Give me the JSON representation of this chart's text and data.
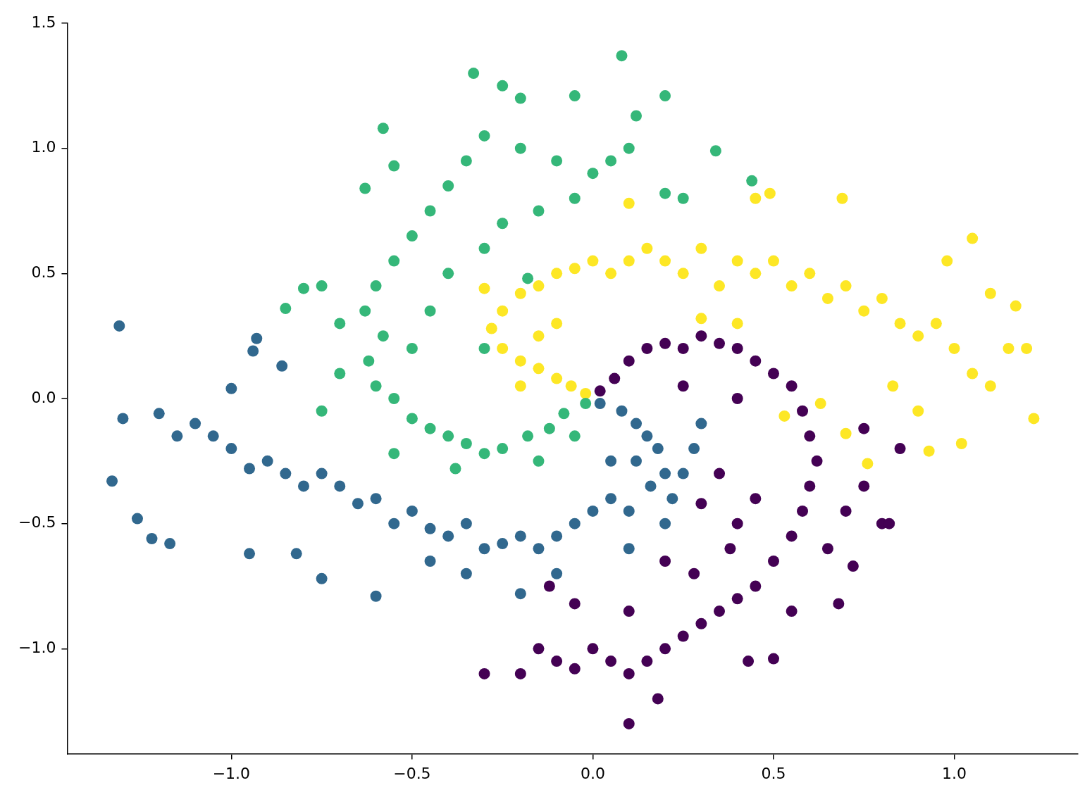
{
  "chart_data": {
    "type": "scatter",
    "marker": "circle",
    "legend": false,
    "xlim": [
      -1.454,
      1.342
    ],
    "ylim": [
      -1.42,
      1.5
    ],
    "xticks": [
      {
        "value": -1,
        "label": "−1.0"
      },
      {
        "value": -0.5,
        "label": "−0.5"
      },
      {
        "value": 0,
        "label": "0.0"
      },
      {
        "value": 0.5,
        "label": "0.5"
      },
      {
        "value": 1,
        "label": "1.0"
      }
    ],
    "yticks": [
      {
        "value": -1,
        "label": "−1.0"
      },
      {
        "value": -0.5,
        "label": "−0.5"
      },
      {
        "value": 0,
        "label": "0.0"
      },
      {
        "value": 0.5,
        "label": "0.5"
      },
      {
        "value": 1,
        "label": "1.0"
      },
      {
        "value": 1.5,
        "label": "1.5"
      }
    ],
    "series": [
      {
        "color": "#31688e",
        "x": [
          0.02,
          0.08,
          0.12,
          0.15,
          0.18,
          0.2,
          0.22,
          0.2,
          0.16,
          0.12,
          0.1,
          0.05,
          0.0,
          -0.05,
          -0.1,
          -0.15,
          -0.2,
          -0.25,
          -0.3,
          -0.35,
          -0.4,
          -0.45,
          -0.5,
          -0.55,
          -0.6,
          -0.65,
          -0.7,
          -0.75,
          -0.8,
          -0.85,
          -0.9,
          -0.95,
          -1.0,
          -1.05,
          -1.1,
          -1.15,
          -1.2,
          -1.3,
          -1.31,
          -1.33,
          -1.26,
          -1.17,
          -1.22,
          -0.93,
          -0.94,
          -0.86,
          0.28,
          0.25,
          0.3,
          -0.2,
          -0.6,
          -0.75,
          0.1,
          -0.45,
          -0.1,
          0.05,
          -0.35,
          -0.82,
          -1.0,
          -0.95
        ],
        "values": [
          -0.02,
          -0.05,
          -0.1,
          -0.15,
          -0.2,
          -0.3,
          -0.4,
          -0.5,
          -0.35,
          -0.25,
          -0.45,
          -0.4,
          -0.45,
          -0.5,
          -0.55,
          -0.6,
          -0.55,
          -0.58,
          -0.6,
          -0.5,
          -0.55,
          -0.52,
          -0.45,
          -0.5,
          -0.4,
          -0.42,
          -0.35,
          -0.3,
          -0.35,
          -0.3,
          -0.25,
          -0.28,
          -0.2,
          -0.15,
          -0.1,
          -0.15,
          -0.06,
          -0.08,
          0.29,
          -0.33,
          -0.48,
          -0.58,
          -0.56,
          0.24,
          0.19,
          0.13,
          -0.2,
          -0.3,
          -0.1,
          -0.78,
          -0.79,
          -0.72,
          -0.6,
          -0.65,
          -0.7,
          -0.25,
          -0.7,
          -0.62,
          0.04,
          -0.62
        ]
      },
      {
        "color": "#35b779",
        "x": [
          -0.02,
          -0.08,
          -0.12,
          -0.18,
          -0.25,
          -0.3,
          -0.35,
          -0.4,
          -0.45,
          -0.5,
          -0.55,
          -0.6,
          -0.62,
          -0.58,
          -0.63,
          -0.6,
          -0.55,
          -0.5,
          -0.45,
          -0.4,
          -0.35,
          -0.3,
          -0.2,
          -0.1,
          0.0,
          0.05,
          0.1,
          -0.05,
          -0.15,
          -0.25,
          -0.3,
          -0.4,
          -0.45,
          -0.5,
          -0.7,
          -0.75,
          -0.8,
          -0.85,
          -0.7,
          -0.75,
          -0.33,
          -0.25,
          0.08,
          0.2,
          0.34,
          0.44,
          0.25,
          0.2,
          -0.05,
          -0.15,
          -0.38,
          -0.55,
          -0.58,
          -0.55,
          -0.2,
          -0.05,
          0.12,
          -0.3,
          -0.18,
          -0.63
        ],
        "values": [
          -0.02,
          -0.06,
          -0.12,
          -0.15,
          -0.2,
          -0.22,
          -0.18,
          -0.15,
          -0.12,
          -0.08,
          0.0,
          0.05,
          0.15,
          0.25,
          0.35,
          0.45,
          0.55,
          0.65,
          0.75,
          0.85,
          0.95,
          1.05,
          1.0,
          0.95,
          0.9,
          0.95,
          1.0,
          0.8,
          0.75,
          0.7,
          0.6,
          0.5,
          0.35,
          0.2,
          0.3,
          0.45,
          0.44,
          0.36,
          0.1,
          -0.05,
          1.3,
          1.25,
          1.37,
          1.21,
          0.99,
          0.87,
          0.8,
          0.82,
          -0.15,
          -0.25,
          -0.28,
          -0.22,
          1.08,
          0.93,
          1.2,
          1.21,
          1.13,
          0.2,
          0.48,
          0.84
        ]
      },
      {
        "color": "#fde725",
        "x": [
          -0.02,
          -0.06,
          -0.1,
          -0.15,
          -0.2,
          -0.25,
          -0.28,
          -0.25,
          -0.2,
          -0.15,
          -0.1,
          -0.05,
          0.0,
          0.05,
          0.1,
          0.15,
          0.2,
          0.25,
          0.3,
          0.35,
          0.4,
          0.45,
          0.5,
          0.55,
          0.6,
          0.65,
          0.7,
          0.75,
          0.8,
          0.85,
          0.9,
          0.95,
          1.0,
          1.05,
          1.1,
          1.15,
          1.2,
          1.22,
          1.17,
          1.05,
          1.1,
          0.69,
          0.49,
          0.1,
          -0.15,
          -0.1,
          -0.2,
          0.53,
          0.63,
          0.7,
          0.76,
          0.93,
          0.83,
          0.9,
          1.02,
          0.3,
          0.4,
          0.45,
          -0.3,
          0.98
        ],
        "values": [
          0.02,
          0.05,
          0.08,
          0.12,
          0.15,
          0.2,
          0.28,
          0.35,
          0.42,
          0.45,
          0.5,
          0.52,
          0.55,
          0.5,
          0.55,
          0.6,
          0.55,
          0.5,
          0.6,
          0.45,
          0.55,
          0.5,
          0.55,
          0.45,
          0.5,
          0.4,
          0.45,
          0.35,
          0.4,
          0.3,
          0.25,
          0.3,
          0.2,
          0.1,
          0.05,
          0.2,
          0.2,
          -0.08,
          0.37,
          0.64,
          0.42,
          0.8,
          0.82,
          0.78,
          0.25,
          0.3,
          0.05,
          -0.07,
          -0.02,
          -0.14,
          -0.26,
          -0.21,
          0.05,
          -0.05,
          -0.18,
          0.32,
          0.3,
          0.8,
          0.44,
          0.55
        ]
      },
      {
        "color": "#440154",
        "x": [
          0.02,
          0.06,
          0.1,
          0.15,
          0.2,
          0.25,
          0.3,
          0.35,
          0.4,
          0.45,
          0.5,
          0.55,
          0.58,
          0.6,
          0.62,
          0.6,
          0.58,
          0.55,
          0.5,
          0.45,
          0.4,
          0.35,
          0.3,
          0.25,
          0.2,
          0.15,
          0.1,
          0.05,
          0.0,
          -0.05,
          -0.1,
          -0.15,
          -0.2,
          -0.3,
          0.1,
          0.18,
          0.4,
          0.35,
          0.45,
          0.7,
          0.75,
          0.8,
          0.82,
          0.72,
          0.68,
          0.5,
          0.43,
          0.3,
          0.28,
          0.2,
          0.1,
          -0.05,
          -0.12,
          0.75,
          0.85,
          0.65,
          0.55,
          0.38,
          0.25,
          0.4
        ],
        "values": [
          0.03,
          0.08,
          0.15,
          0.2,
          0.22,
          0.2,
          0.25,
          0.22,
          0.2,
          0.15,
          0.1,
          0.05,
          -0.05,
          -0.15,
          -0.25,
          -0.35,
          -0.45,
          -0.55,
          -0.65,
          -0.75,
          -0.8,
          -0.85,
          -0.9,
          -0.95,
          -1.0,
          -1.05,
          -1.1,
          -1.05,
          -1.0,
          -1.08,
          -1.05,
          -1.0,
          -1.1,
          -1.1,
          -1.3,
          -1.2,
          -0.5,
          -0.3,
          -0.4,
          -0.45,
          -0.35,
          -0.5,
          -0.5,
          -0.67,
          -0.82,
          -1.04,
          -1.05,
          -0.42,
          -0.7,
          -0.65,
          -0.85,
          -0.82,
          -0.75,
          -0.12,
          -0.2,
          -0.6,
          -0.85,
          -0.6,
          0.05,
          0.0
        ]
      }
    ]
  }
}
